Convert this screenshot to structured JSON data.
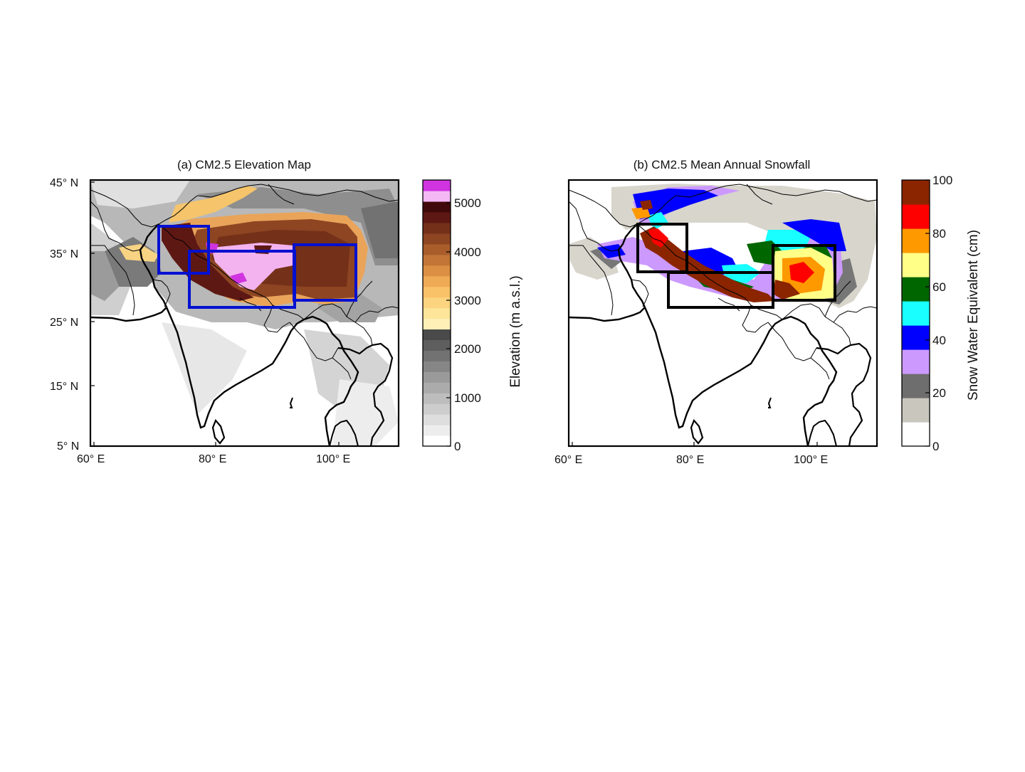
{
  "panel_a": {
    "title": "(a) CM2.5 Elevation Map",
    "lat_labels": [
      "45° N",
      "35° N",
      "25° N",
      "15° N",
      "5° N"
    ],
    "lon_labels": [
      "60° E",
      "80° E",
      "100° E"
    ],
    "colorbar": {
      "label": "Elevation (m a.s.l.)",
      "ticks": [
        "0",
        "1000",
        "2000",
        "3000",
        "4000",
        "5000"
      ],
      "colors": [
        "#ffffff",
        "#ededed",
        "#dedede",
        "#cdcdcd",
        "#bdbdbd",
        "#ababab",
        "#9a9a9a",
        "#868686",
        "#727272",
        "#5e5e5e",
        "#4a4a4a",
        "#fff0b8",
        "#fde59a",
        "#fcd47f",
        "#f9c168",
        "#efaa55",
        "#db8f43",
        "#c27536",
        "#a85d2b",
        "#8d4522",
        "#75301a",
        "#5e1814",
        "#410a0a",
        "#f4b8f4",
        "#d033e0"
      ]
    },
    "boxes_color": "#0010d0"
  },
  "panel_b": {
    "title": "(b) CM2.5 Mean Annual Snowfall",
    "lat_labels": [],
    "lon_labels": [
      "60° E",
      "80° E",
      "100° E"
    ],
    "colorbar": {
      "label": "Snow Water Equivalent (cm)",
      "ticks": [
        "0",
        "20",
        "40",
        "60",
        "80",
        "100"
      ],
      "colors": [
        "#ffffff",
        "#c9c6bd",
        "#6e6e6e",
        "#cc99ff",
        "#0000ff",
        "#19ffff",
        "#006600",
        "#ffff88",
        "#ff9900",
        "#ff0000",
        "#8b2500"
      ]
    },
    "boxes_color": "#000000"
  }
}
